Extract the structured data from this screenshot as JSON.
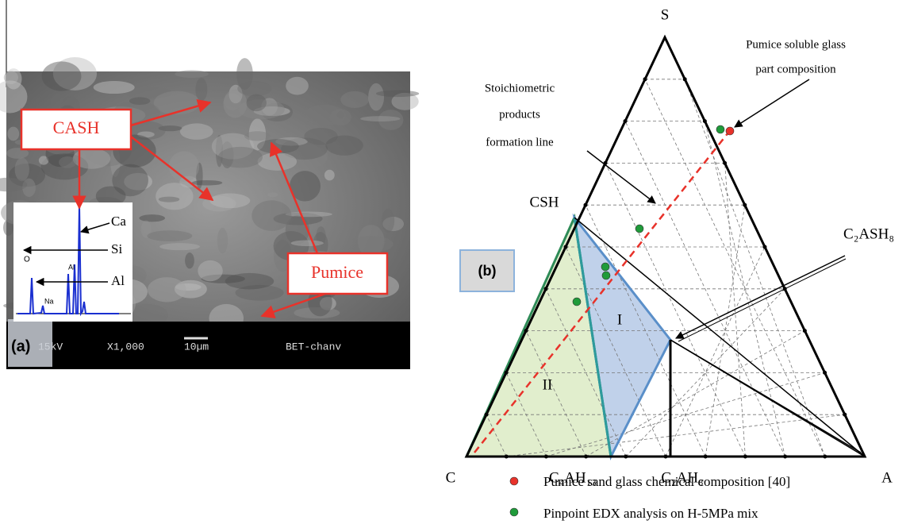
{
  "panel_a": {
    "label": "(a)",
    "callouts": [
      "CASH",
      "Pumice"
    ],
    "spectrum_elements": [
      "Ca",
      "Si",
      "Al"
    ],
    "spectrum_peaks": [
      "O",
      "Al",
      "Na"
    ],
    "scale_bar": [
      "15kV",
      "X1,000",
      "10µm",
      "BET-chanv"
    ]
  },
  "panel_b": {
    "label": "(b)",
    "vertices": [
      "S",
      "C",
      "A"
    ],
    "phases": [
      "CSH",
      "C₂ASH₈",
      "C₄AH₁₃",
      "C₂AH₈"
    ],
    "regions": [
      "I",
      "II"
    ],
    "annotations": {
      "stoichiometric": [
        "Stoichiometric",
        "products",
        "formation line"
      ],
      "pumice_glass": [
        "Pumice soluble glass",
        "part composition"
      ]
    },
    "legend": [
      "Pumice sand glass chemical composition [40]",
      "Pinpoint EDX analysis on H-5MPa mix"
    ]
  }
}
